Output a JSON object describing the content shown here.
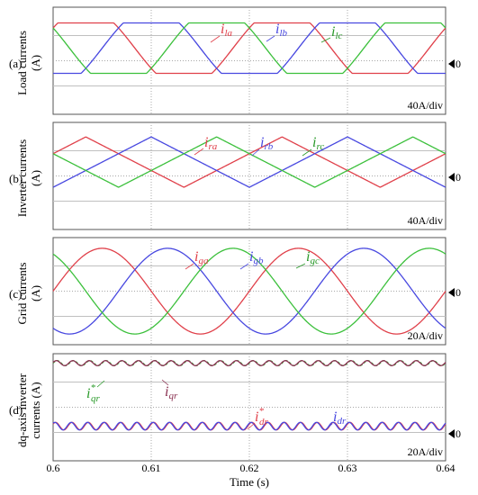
{
  "chart_data": [
    {
      "type": "line",
      "panel": "(a)",
      "ylabel": [
        "Load currents",
        "(A)"
      ],
      "scale": "40A/div",
      "zero_marker": "0",
      "x": [
        0.6,
        0.64
      ],
      "series": [
        {
          "name": "i_la",
          "symbol": "i",
          "sub": "la",
          "color": "#e0404a",
          "shape": "trap",
          "amplitude_div": 1,
          "offset_div": 0.5,
          "phase_deg": 30
        },
        {
          "name": "i_lb",
          "symbol": "i",
          "sub": "lb",
          "color": "#4848e0",
          "shape": "trap",
          "amplitude_div": 1,
          "offset_div": 0.5,
          "phase_deg": -90
        },
        {
          "name": "i_lc",
          "symbol": "i",
          "sub": "lc",
          "color": "#3cc03c",
          "shape": "trap",
          "amplitude_div": 1,
          "offset_div": 0.5,
          "phase_deg": 150
        }
      ],
      "annotations": [
        {
          "series": "i_la",
          "sup": ""
        },
        {
          "series": "i_lb",
          "sup": ""
        },
        {
          "series": "i_lc",
          "sup": ""
        }
      ]
    },
    {
      "type": "line",
      "panel": "(b)",
      "ylabel": [
        "Inverter currents",
        "(A)"
      ],
      "scale": "40A/div",
      "zero_marker": "0",
      "x": [
        0.6,
        0.64
      ],
      "series": [
        {
          "name": "i_ra",
          "symbol": "i",
          "sub": "ra",
          "color": "#e0404a",
          "shape": "tri",
          "amplitude_div": 1,
          "offset_div": 0.55,
          "phase_deg": 30
        },
        {
          "name": "i_rb",
          "symbol": "i",
          "sub": "rb",
          "color": "#4848e0",
          "shape": "tri",
          "amplitude_div": 1,
          "offset_div": 0.55,
          "phase_deg": -90
        },
        {
          "name": "i_rc",
          "symbol": "i",
          "sub": "rc",
          "color": "#3cc03c",
          "shape": "tri",
          "amplitude_div": 1,
          "offset_div": 0.55,
          "phase_deg": 150
        }
      ],
      "annotations": [
        {
          "series": "i_ra",
          "sup": ""
        },
        {
          "series": "i_rb",
          "sup": ""
        },
        {
          "series": "i_rc",
          "sup": ""
        }
      ]
    },
    {
      "type": "line",
      "panel": "(c)",
      "ylabel": [
        "Grid currents",
        "(A)"
      ],
      "scale": "20A/div",
      "zero_marker": "0",
      "x": [
        0.6,
        0.64
      ],
      "series": [
        {
          "name": "i_ga",
          "symbol": "i",
          "sub": "ga",
          "color": "#e0404a",
          "shape": "sine",
          "amplitude_div": 1.7,
          "offset_div": 0,
          "phase_deg": 0
        },
        {
          "name": "i_gb",
          "symbol": "i",
          "sub": "gb",
          "color": "#4848e0",
          "shape": "sine",
          "amplitude_div": 1.7,
          "offset_div": 0,
          "phase_deg": -120
        },
        {
          "name": "i_gc",
          "symbol": "i",
          "sub": "gc",
          "color": "#3cc03c",
          "shape": "sine",
          "amplitude_div": 1.7,
          "offset_div": 0,
          "phase_deg": 120
        }
      ],
      "annotations": [
        {
          "series": "i_ga",
          "sup": ""
        },
        {
          "series": "i_gb",
          "sup": ""
        },
        {
          "series": "i_gc",
          "sup": ""
        }
      ]
    },
    {
      "type": "line",
      "panel": "(d)",
      "ylabel": [
        "dq-axis inverter",
        "currents (A)"
      ],
      "scale": "20A/div",
      "zero_marker": "0",
      "x": [
        0.6,
        0.64
      ],
      "series": [
        {
          "name": "i*_qr",
          "symbol": "i",
          "sub": "qr",
          "sup": "*",
          "color": "#3ca03c",
          "shape": "ripple",
          "level_div": 1.75,
          "ripple_div": 0.1,
          "ripple_cycles": 24,
          "dashed": true
        },
        {
          "name": "i_qr",
          "symbol": "i",
          "sub": "qr",
          "color": "#8a3050",
          "shape": "ripple",
          "level_div": 1.75,
          "ripple_div": 0.1,
          "ripple_cycles": 24
        },
        {
          "name": "i*_dr",
          "symbol": "i",
          "sub": "dr",
          "sup": "*",
          "color": "#e0404a",
          "shape": "ripple",
          "level_div": -0.75,
          "ripple_div": 0.15,
          "ripple_cycles": 24
        },
        {
          "name": "i_dr",
          "symbol": "i",
          "sub": "dr",
          "color": "#4848e0",
          "shape": "ripple",
          "level_div": -0.75,
          "ripple_div": 0.15,
          "ripple_cycles": 24
        }
      ],
      "annotations": [
        {
          "series": "i*_qr",
          "sup": "*"
        },
        {
          "series": "i_qr",
          "sup": ""
        },
        {
          "series": "i*_dr",
          "sup": "*"
        },
        {
          "series": "i_dr",
          "sup": ""
        }
      ]
    }
  ],
  "x_axis": {
    "label": "Time (s)",
    "ticks": [
      "0.6",
      "0.61",
      "0.62",
      "0.63",
      "0.64"
    ],
    "range": [
      0.6,
      0.64
    ]
  },
  "colors": {
    "grid_solid": "#c0c0c0",
    "grid_dotted": "#a8a8a8",
    "frame": "#555555"
  }
}
